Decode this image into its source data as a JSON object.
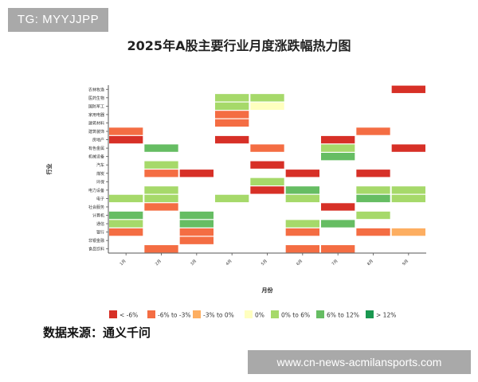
{
  "watermark_top": "TG: MYYJJPP",
  "watermark_bottom": "www.cn-news-acmilansports.com",
  "source_text": "数据来源：通义千问",
  "chart_data": {
    "type": "heatmap",
    "title": "2025年A股主要行业月度涨跌幅热力图",
    "xlabel": "月份",
    "ylabel": "行业",
    "x": [
      "1月",
      "2月",
      "3月",
      "4月",
      "5月",
      "6月",
      "7月",
      "8月",
      "9月"
    ],
    "y": [
      "农林牧渔",
      "医药生物",
      "国防军工",
      "家用电器",
      "建筑材料",
      "建筑装饰",
      "房地产",
      "有色金属",
      "机械设备",
      "汽车",
      "煤炭",
      "环保",
      "电力设备",
      "电子",
      "社会服务",
      "计算机",
      "通信",
      "银行",
      "非银金融",
      "食品饮料"
    ],
    "bins": [
      "< -6%",
      "-6% to -3%",
      "-3% to 0%",
      "0%",
      "0% to 6%",
      "6% to 12%",
      "> 12%"
    ],
    "colors": [
      "#d73027",
      "#f46d43",
      "#fdae61",
      "#ffffbf",
      "#a6d96a",
      "#66bd63",
      "#1a9850"
    ],
    "legend_position": "bottom",
    "grid": false,
    "cells": [
      {
        "x": "9月",
        "y": "农林牧渔",
        "bin": 0
      },
      {
        "x": "4月",
        "y": "医药生物",
        "bin": 4
      },
      {
        "x": "5月",
        "y": "医药生物",
        "bin": 4
      },
      {
        "x": "4月",
        "y": "国防军工",
        "bin": 4
      },
      {
        "x": "5月",
        "y": "国防军工",
        "bin": 3
      },
      {
        "x": "4月",
        "y": "家用电器",
        "bin": 1
      },
      {
        "x": "4月",
        "y": "建筑材料",
        "bin": 1
      },
      {
        "x": "1月",
        "y": "建筑装饰",
        "bin": 1
      },
      {
        "x": "8月",
        "y": "建筑装饰",
        "bin": 1
      },
      {
        "x": "1月",
        "y": "房地产",
        "bin": 0
      },
      {
        "x": "4月",
        "y": "房地产",
        "bin": 0
      },
      {
        "x": "7月",
        "y": "房地产",
        "bin": 0
      },
      {
        "x": "2月",
        "y": "有色金属",
        "bin": 5
      },
      {
        "x": "5月",
        "y": "有色金属",
        "bin": 1
      },
      {
        "x": "7月",
        "y": "有色金属",
        "bin": 4
      },
      {
        "x": "9月",
        "y": "有色金属",
        "bin": 0
      },
      {
        "x": "7月",
        "y": "机械设备",
        "bin": 5
      },
      {
        "x": "2月",
        "y": "汽车",
        "bin": 4
      },
      {
        "x": "5月",
        "y": "汽车",
        "bin": 0
      },
      {
        "x": "2月",
        "y": "煤炭",
        "bin": 1
      },
      {
        "x": "3月",
        "y": "煤炭",
        "bin": 0
      },
      {
        "x": "6月",
        "y": "煤炭",
        "bin": 0
      },
      {
        "x": "8月",
        "y": "煤炭",
        "bin": 0
      },
      {
        "x": "5月",
        "y": "环保",
        "bin": 4
      },
      {
        "x": "2月",
        "y": "电力设备",
        "bin": 4
      },
      {
        "x": "5月",
        "y": "电力设备",
        "bin": 0
      },
      {
        "x": "6月",
        "y": "电力设备",
        "bin": 5
      },
      {
        "x": "8月",
        "y": "电力设备",
        "bin": 4
      },
      {
        "x": "9月",
        "y": "电力设备",
        "bin": 4
      },
      {
        "x": "1月",
        "y": "电子",
        "bin": 4
      },
      {
        "x": "2月",
        "y": "电子",
        "bin": 4
      },
      {
        "x": "4月",
        "y": "电子",
        "bin": 4
      },
      {
        "x": "6月",
        "y": "电子",
        "bin": 4
      },
      {
        "x": "8月",
        "y": "电子",
        "bin": 5
      },
      {
        "x": "9月",
        "y": "电子",
        "bin": 4
      },
      {
        "x": "2月",
        "y": "社会服务",
        "bin": 1
      },
      {
        "x": "7月",
        "y": "社会服务",
        "bin": 0
      },
      {
        "x": "1月",
        "y": "计算机",
        "bin": 5
      },
      {
        "x": "3月",
        "y": "计算机",
        "bin": 5
      },
      {
        "x": "8月",
        "y": "计算机",
        "bin": 4
      },
      {
        "x": "1月",
        "y": "通信",
        "bin": 4
      },
      {
        "x": "3月",
        "y": "通信",
        "bin": 5
      },
      {
        "x": "6月",
        "y": "通信",
        "bin": 4
      },
      {
        "x": "7月",
        "y": "通信",
        "bin": 5
      },
      {
        "x": "1月",
        "y": "银行",
        "bin": 1
      },
      {
        "x": "3月",
        "y": "银行",
        "bin": 1
      },
      {
        "x": "6月",
        "y": "银行",
        "bin": 1
      },
      {
        "x": "8月",
        "y": "银行",
        "bin": 1
      },
      {
        "x": "9月",
        "y": "银行",
        "bin": 2
      },
      {
        "x": "3月",
        "y": "非银金融",
        "bin": 1
      },
      {
        "x": "2月",
        "y": "食品饮料",
        "bin": 1
      },
      {
        "x": "6月",
        "y": "食品饮料",
        "bin": 1
      },
      {
        "x": "7月",
        "y": "食品饮料",
        "bin": 1
      }
    ]
  }
}
